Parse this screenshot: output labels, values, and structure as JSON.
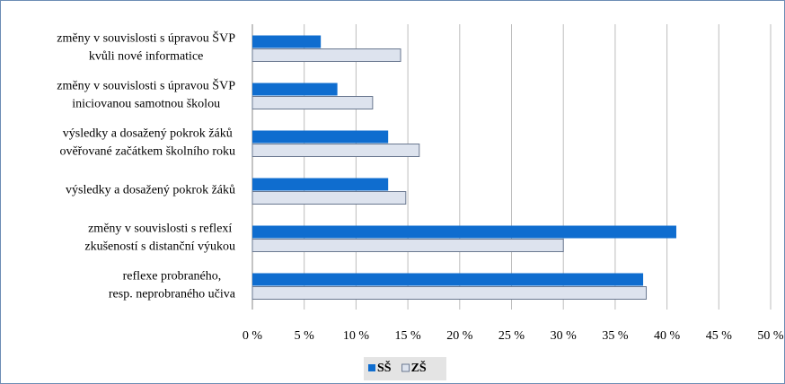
{
  "chart_data": {
    "type": "bar",
    "orientation": "horizontal",
    "categories": [
      [
        "změny v souvislosti s úpravou ŠVP",
        "kvůli nové informatice"
      ],
      [
        "změny v souvislosti s úpravou ŠVP",
        "iniciovanou samotnou školou"
      ],
      [
        "výsledky a dosažený pokrok žáků",
        "ověřované začátkem školního roku"
      ],
      [
        "výsledky a dosažený pokrok žáků"
      ],
      [
        "změny v souvislosti s reflexí",
        "zkušeností s distanční výukou"
      ],
      [
        "reflexe probraného,",
        "resp. neprobraného učiva"
      ]
    ],
    "series": [
      {
        "name": "SŠ",
        "color": "#0f6dcf",
        "values": [
          6.6,
          8.2,
          13.1,
          13.1,
          40.9,
          37.7
        ]
      },
      {
        "name": "ZŠ",
        "color": "#dde3ee",
        "values": [
          14.3,
          11.6,
          16.1,
          14.8,
          30.0,
          38.0
        ]
      }
    ],
    "xlim": [
      0,
      50
    ],
    "xticks": [
      {
        "value": 0,
        "label": "0 %"
      },
      {
        "value": 5,
        "label": "5 %"
      },
      {
        "value": 10,
        "label": "10 %"
      },
      {
        "value": 15,
        "label": "15 %"
      },
      {
        "value": 20,
        "label": "20 %"
      },
      {
        "value": 25,
        "label": "25 %"
      },
      {
        "value": 30,
        "label": "30 %"
      },
      {
        "value": 35,
        "label": "35 %"
      },
      {
        "value": 40,
        "label": "40 %"
      },
      {
        "value": 45,
        "label": "45 %"
      },
      {
        "value": 50,
        "label": "50 %"
      }
    ],
    "grid": true,
    "legend": "bottom"
  }
}
